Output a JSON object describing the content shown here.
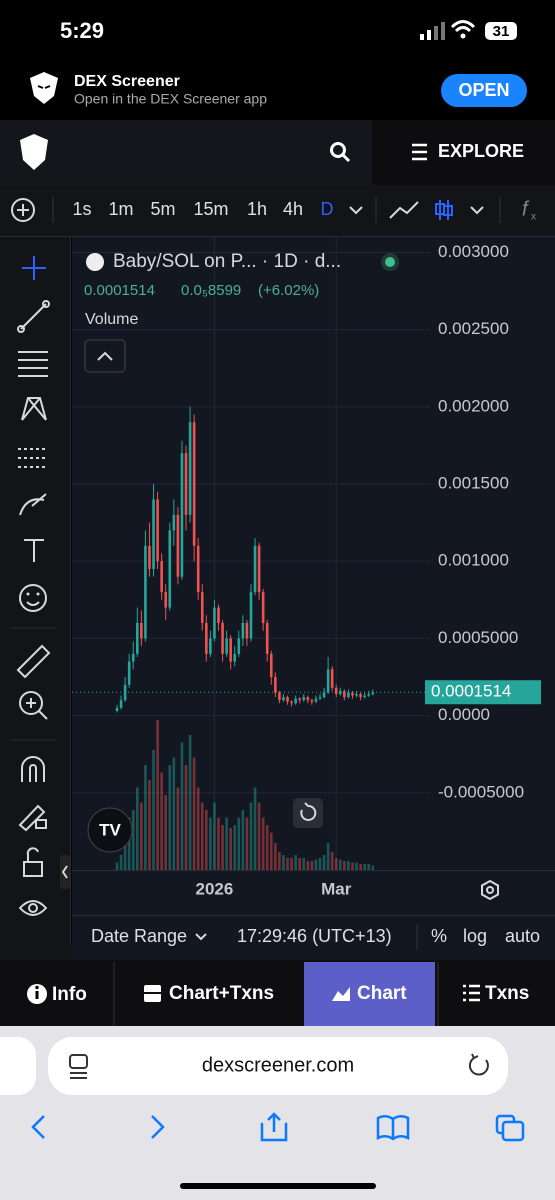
{
  "status_bar": {
    "time": "5:29",
    "battery": "31"
  },
  "app_banner": {
    "title": "DEX Screener",
    "subtitle": "Open in the DEX Screener app",
    "button": "OPEN"
  },
  "nav": {
    "explore": "EXPLORE"
  },
  "toolbar": {
    "intervals": [
      "1s",
      "1m",
      "5m",
      "15m",
      "1h",
      "4h",
      "D"
    ]
  },
  "chart_data": {
    "type": "candlestick",
    "title": "Baby/SOL on P... · 1D · d...",
    "last_price": 0.0001514,
    "change": "0.0₅8599",
    "change_percent": "(+6.02%)",
    "volume_label": "Volume",
    "categories": [
      null,
      null,
      null,
      null,
      null,
      null,
      null,
      null,
      null,
      null,
      null,
      null,
      null,
      null,
      null,
      null,
      null,
      null,
      null,
      null,
      null,
      null,
      null,
      null,
      "2026",
      null,
      null,
      null,
      null,
      null,
      null,
      null,
      null,
      null,
      null,
      null,
      null,
      null,
      null,
      null,
      null,
      null,
      null,
      null,
      null,
      null,
      null,
      null,
      null,
      null,
      null,
      null,
      null,
      null,
      "Mar",
      null,
      null,
      null,
      null,
      null,
      null,
      null,
      null,
      null
    ],
    "open": [
      3e-05,
      5e-05,
      0.0001,
      0.0002,
      0.00035,
      0.0004,
      0.0006,
      0.0005,
      0.0011,
      0.00095,
      0.0014,
      0.001,
      0.0008,
      0.0007,
      0.0012,
      0.0013,
      0.0009,
      0.0017,
      0.0013,
      0.0019,
      0.0011,
      0.0008,
      0.0006,
      0.0004,
      0.0005,
      0.0007,
      0.0006,
      0.0004,
      0.0005,
      0.00035,
      0.0004,
      0.0005,
      0.0006,
      0.0005,
      0.0008,
      0.0011,
      0.0008,
      0.0006,
      0.0004,
      0.00025,
      0.00015,
      0.0001,
      0.00012,
      9e-05,
      8e-05,
      0.00011,
      0.0001,
      0.00012,
      0.0001,
      9e-05,
      0.00011,
      0.00012,
      0.00015,
      0.0003,
      0.00018,
      0.00014,
      0.00016,
      0.00012,
      0.00015,
      0.00013,
      0.00014,
      0.00012,
      0.00013,
      0.00014
    ],
    "high": [
      7e-05,
      0.00013,
      0.00025,
      0.0004,
      0.00048,
      0.0007,
      0.00068,
      0.0012,
      0.00125,
      0.0015,
      0.00145,
      0.00105,
      0.00085,
      0.00125,
      0.0014,
      0.00135,
      0.00178,
      0.00175,
      0.002,
      0.00195,
      0.00115,
      0.00085,
      0.00065,
      0.00055,
      0.00075,
      0.00072,
      0.00062,
      0.00055,
      0.00052,
      0.00045,
      0.00055,
      0.00065,
      0.00062,
      0.00085,
      0.00115,
      0.00112,
      0.00082,
      0.00062,
      0.00042,
      0.00028,
      0.00016,
      0.00014,
      0.00013,
      0.0001,
      0.00013,
      0.00012,
      0.00014,
      0.00013,
      0.00011,
      0.00013,
      0.00014,
      0.00018,
      0.00038,
      0.00032,
      0.0002,
      0.00018,
      0.00017,
      0.00017,
      0.00016,
      0.00016,
      0.00015,
      0.00015,
      0.00016,
      0.00017
    ],
    "low": [
      2e-05,
      4e-05,
      9e-05,
      0.00018,
      0.0003,
      0.00038,
      0.00045,
      0.00048,
      0.0009,
      0.0009,
      0.00095,
      0.00075,
      0.00062,
      0.00068,
      0.0011,
      0.00085,
      0.00088,
      0.0012,
      0.00125,
      0.001,
      0.00075,
      0.00055,
      0.00035,
      0.00038,
      0.00048,
      0.00055,
      0.00035,
      0.00038,
      0.0003,
      0.00032,
      0.00038,
      0.00045,
      0.00045,
      0.00048,
      0.00078,
      0.00075,
      0.00055,
      0.00035,
      0.0002,
      0.00012,
      8e-05,
      9e-05,
      7e-05,
      6e-05,
      7e-05,
      8e-05,
      9e-05,
      8e-05,
      7e-05,
      8e-05,
      0.0001,
      0.00011,
      0.00014,
      0.00016,
      0.00012,
      0.00013,
      0.0001,
      0.00011,
      0.00011,
      0.00012,
      0.0001,
      0.00011,
      0.00012,
      0.00013
    ],
    "close": [
      5e-05,
      0.0001,
      0.0002,
      0.00035,
      0.0004,
      0.0006,
      0.0005,
      0.0011,
      0.00095,
      0.0014,
      0.001,
      0.0008,
      0.0007,
      0.0012,
      0.0013,
      0.0009,
      0.0017,
      0.0013,
      0.0019,
      0.0011,
      0.0008,
      0.0006,
      0.0004,
      0.0005,
      0.0007,
      0.0006,
      0.0004,
      0.0005,
      0.00035,
      0.0004,
      0.0005,
      0.0006,
      0.0005,
      0.0008,
      0.0011,
      0.0008,
      0.0006,
      0.0004,
      0.00025,
      0.00015,
      0.0001,
      0.00012,
      9e-05,
      8e-05,
      0.00011,
      0.0001,
      0.00012,
      0.0001,
      9e-05,
      0.00011,
      0.00012,
      0.00015,
      0.0003,
      0.00018,
      0.00014,
      0.00016,
      0.00012,
      0.00015,
      0.00013,
      0.00014,
      0.00012,
      0.00013,
      0.00014,
      0.0001514
    ],
    "volume": [
      5,
      10,
      20,
      35,
      40,
      55,
      45,
      70,
      60,
      80,
      100,
      65,
      50,
      70,
      75,
      55,
      85,
      70,
      90,
      75,
      55,
      45,
      40,
      35,
      45,
      35,
      30,
      35,
      28,
      30,
      35,
      40,
      35,
      45,
      55,
      45,
      35,
      30,
      25,
      18,
      12,
      10,
      8,
      8,
      10,
      8,
      8,
      6,
      6,
      7,
      8,
      10,
      18,
      12,
      8,
      7,
      6,
      6,
      5,
      5,
      4,
      4,
      4,
      3
    ],
    "up_color": "#26a69a",
    "down_color": "#ef5350",
    "ylim": [
      -0.001,
      0.0031
    ],
    "yticks": [
      {
        "value": -0.0005,
        "label": "-0.0005000"
      },
      {
        "value": 0,
        "label": "0.0000"
      },
      {
        "value": 0.0005,
        "label": "0.0005000"
      },
      {
        "value": 0.001,
        "label": "0.001000"
      },
      {
        "value": 0.0015,
        "label": "0.001500"
      },
      {
        "value": 0.002,
        "label": "0.002000"
      },
      {
        "value": 0.0025,
        "label": "0.002500"
      },
      {
        "value": 0.003,
        "label": "0.003000"
      }
    ],
    "grid": true
  },
  "footer": {
    "date_range": "Date Range",
    "time": "17:29:46 (UTC+13)",
    "percent": "%",
    "log": "log",
    "auto": "auto"
  },
  "tabs": [
    "Info",
    "Chart+Txns",
    "Chart",
    "Txns"
  ],
  "browser": {
    "url": "dexscreener.com"
  }
}
